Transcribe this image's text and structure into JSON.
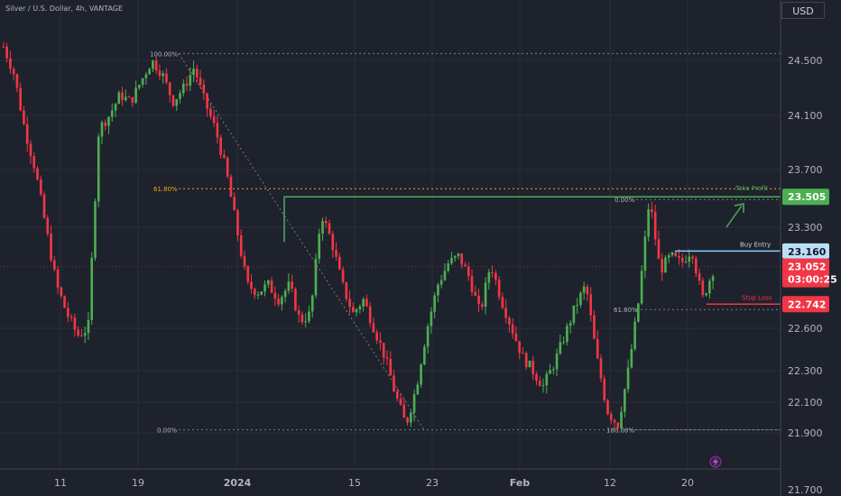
{
  "header": {
    "title": "Silver / U.S. Dollar, 4h, VANTAGE",
    "currency": "USD"
  },
  "colors": {
    "background": "#1e222d",
    "up": "#4caf50",
    "down": "#f23645",
    "grid": "#2a2e39",
    "take_profit": "#4caf50",
    "buy_entry": "#90caf9",
    "stop_loss": "#f23645",
    "fib_orange": "#f7a21b",
    "axis_text": "#b2b5be"
  },
  "chart_data": {
    "type": "candlestick",
    "y_ticks": [
      "24.500",
      "24.100",
      "23.700",
      "23.300",
      "22.600",
      "22.300",
      "22.100",
      "21.900",
      "21.700"
    ],
    "y_tick_values": [
      24.5,
      24.1,
      23.7,
      23.3,
      22.6,
      22.3,
      22.1,
      21.9,
      21.7
    ],
    "x_ticks": [
      "11",
      "19",
      "2024",
      "15",
      "23",
      "Feb",
      "12",
      "20"
    ],
    "levels": {
      "take_profit": {
        "label": "Take Profit",
        "value": 23.505,
        "tag": "23.505"
      },
      "buy_entry": {
        "label": "Buy Entry",
        "value": 23.16,
        "tag": "23.160"
      },
      "stop_loss": {
        "label": "Stop Loss",
        "value": 22.742,
        "tag": "22.742"
      },
      "current": {
        "value": 23.052,
        "tag": "23.052",
        "countdown": "03:00:25"
      }
    },
    "fib_left": {
      "top_label": "100.00%",
      "mid_label": "61.80%",
      "bottom_label": "0.00%",
      "top_value": 24.55,
      "bottom_value": 21.92
    },
    "fib_right": {
      "top_label": "0.00%",
      "mid_label": "61.80%",
      "bottom_label": "100.00%"
    },
    "price_path": [
      24.6,
      24.4,
      24.0,
      23.7,
      23.3,
      22.9,
      22.7,
      22.55,
      22.6,
      24.0,
      24.1,
      24.25,
      24.2,
      24.35,
      24.5,
      24.4,
      24.2,
      24.3,
      24.45,
      24.2,
      24.0,
      23.7,
      23.3,
      22.9,
      22.85,
      22.9,
      22.8,
      22.9,
      22.65,
      22.7,
      23.4,
      23.2,
      22.9,
      22.7,
      22.8,
      22.6,
      22.4,
      22.15,
      21.95,
      22.2,
      22.6,
      22.9,
      23.05,
      23.1,
      22.95,
      22.7,
      23.05,
      22.8,
      22.6,
      22.4,
      22.3,
      22.2,
      22.35,
      22.55,
      22.75,
      22.9,
      22.4,
      22.05,
      21.95,
      22.3,
      22.8,
      23.5,
      23.0,
      23.1,
      23.05,
      23.15,
      22.8,
      23.0
    ]
  }
}
